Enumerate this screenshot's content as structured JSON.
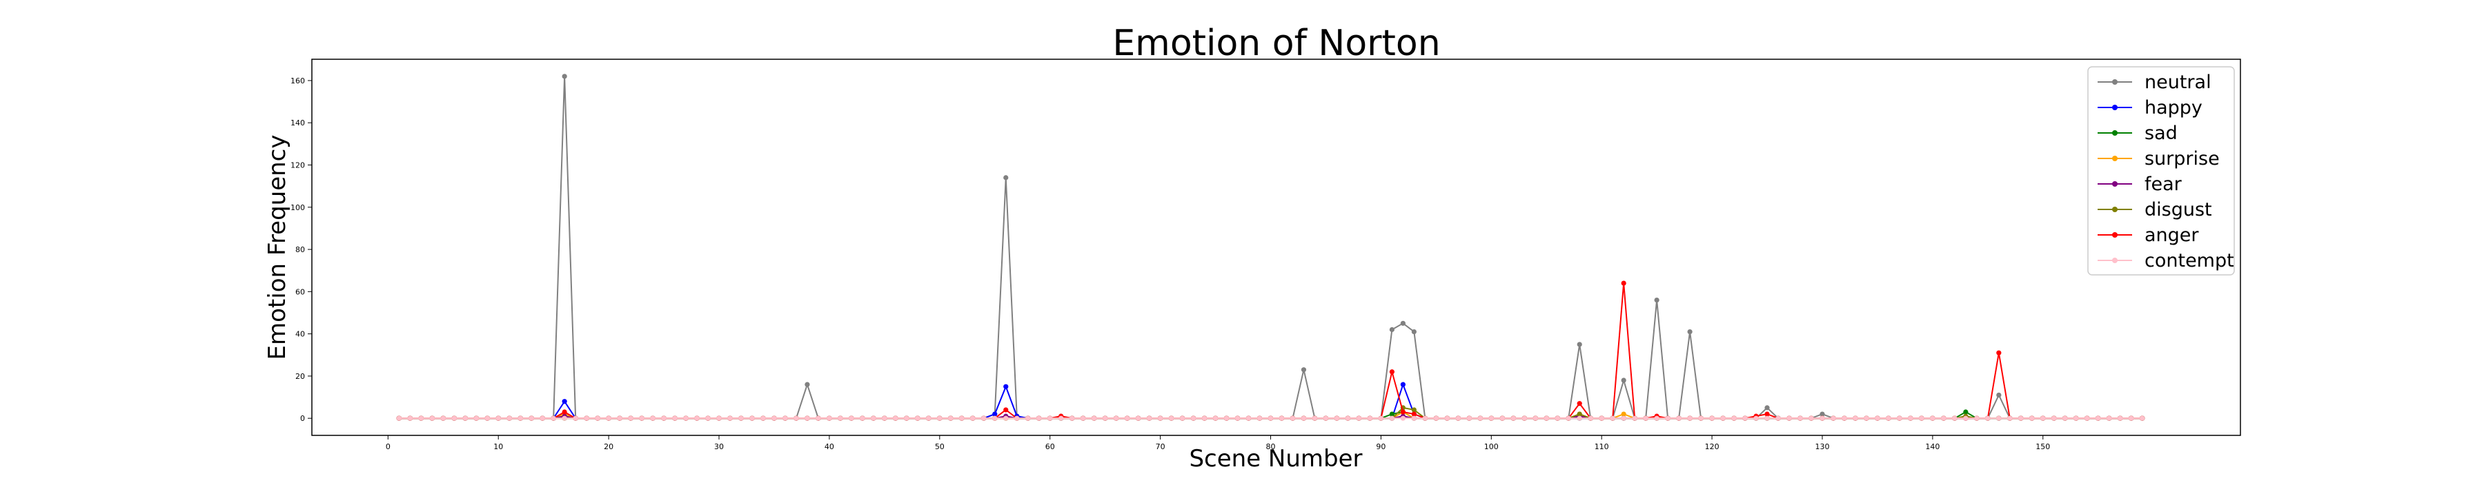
{
  "chart_data": {
    "type": "line",
    "title": "Emotion of Norton",
    "xlabel": "Scene Number",
    "ylabel": "Emotion Frequency",
    "xlim": [
      -6.9,
      167.9
    ],
    "ylim": [
      -8.1,
      170.1
    ],
    "xticks": [
      0,
      10,
      20,
      30,
      40,
      50,
      60,
      70,
      80,
      90,
      100,
      110,
      120,
      130,
      140,
      150
    ],
    "yticks": [
      0,
      20,
      40,
      60,
      80,
      100,
      120,
      140,
      160
    ],
    "x_range": [
      1,
      159
    ],
    "grid": false,
    "legend_position": "upper right",
    "series": [
      {
        "name": "neutral",
        "color": "#808080",
        "nonzero": {
          "16": 162,
          "38": 16,
          "55": 2,
          "56": 114,
          "57": 1,
          "61": 1,
          "83": 23,
          "91": 42,
          "92": 45,
          "93": 41,
          "108": 35,
          "112": 18,
          "115": 56,
          "118": 41,
          "125": 5,
          "130": 2,
          "146": 11
        }
      },
      {
        "name": "happy",
        "color": "#0000ff",
        "nonzero": {
          "16": 8,
          "55": 2,
          "56": 15,
          "57": 1,
          "92": 16,
          "93": 2
        }
      },
      {
        "name": "sad",
        "color": "#008000",
        "nonzero": {
          "91": 2,
          "92": 3,
          "143": 3
        }
      },
      {
        "name": "surprise",
        "color": "#ffa500",
        "nonzero": {
          "16": 2,
          "92": 3,
          "108": 2,
          "112": 2
        }
      },
      {
        "name": "fear",
        "color": "#800080",
        "nonzero": {
          "16": 1,
          "56": 1,
          "92": 1,
          "108": 1
        }
      },
      {
        "name": "disgust",
        "color": "#808000",
        "nonzero": {
          "92": 5,
          "93": 4,
          "108": 2,
          "143": 1
        }
      },
      {
        "name": "anger",
        "color": "#ff0000",
        "nonzero": {
          "16": 3,
          "56": 4,
          "61": 1,
          "91": 22,
          "92": 3,
          "93": 2,
          "108": 7,
          "112": 64,
          "115": 1,
          "124": 1,
          "125": 2,
          "146": 31
        }
      },
      {
        "name": "contempt",
        "color": "#ffc0cb",
        "nonzero": {}
      }
    ]
  }
}
